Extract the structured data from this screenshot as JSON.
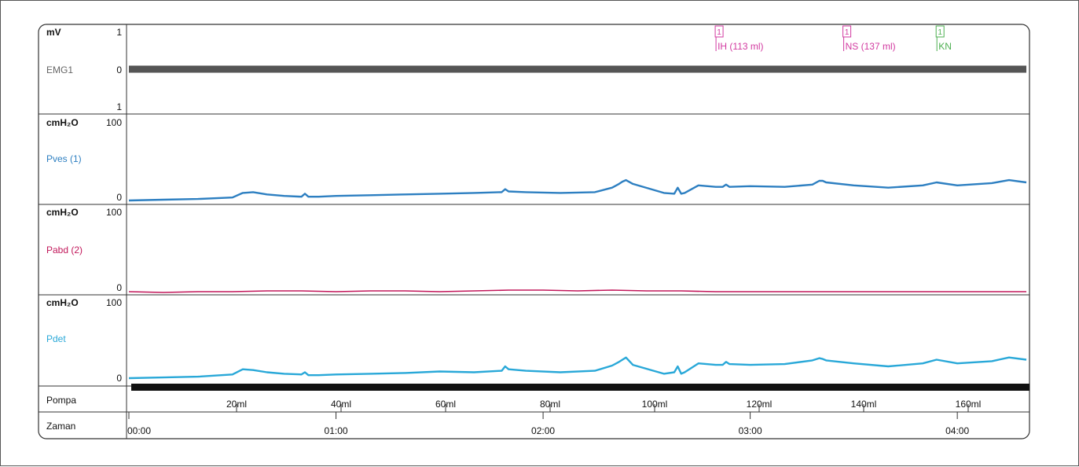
{
  "chart_data": {
    "type": "line",
    "title": "",
    "x_unit": "Zaman",
    "x_ticks": [
      "00:00",
      "01:00",
      "02:00",
      "03:00",
      "04:00"
    ],
    "x_range_minutes": [
      0,
      260
    ],
    "pump_label": "Pompa",
    "pump_ticks": [
      "20ml",
      "40ml",
      "60ml",
      "80ml",
      "100ml",
      "120ml",
      "140ml",
      "160ml"
    ],
    "time_label": "Zaman",
    "events": [
      {
        "marker": "1",
        "label": "IH (113 ml)",
        "t": 171,
        "color": "#d23aa0"
      },
      {
        "marker": "1",
        "label": "NS (137 ml)",
        "t": 208,
        "color": "#d23aa0"
      },
      {
        "marker": "1",
        "label": "KN",
        "t": 235,
        "color": "#4caf50"
      }
    ],
    "channels": [
      {
        "unit": "mV",
        "name": "EMG1",
        "color": "#555555",
        "ticks": [
          "1",
          "0",
          "1"
        ],
        "ylim": [
          -1,
          1
        ],
        "x": [
          0,
          260
        ],
        "values": [
          0,
          0
        ]
      },
      {
        "unit": "cmH₂O",
        "name": "Pves (1)",
        "color": "#2d7fc1",
        "ticks": [
          "100",
          "0"
        ],
        "ylim": [
          0,
          100
        ],
        "x": [
          0,
          10,
          20,
          30,
          33,
          36,
          40,
          45,
          50,
          51,
          52,
          55,
          60,
          70,
          80,
          90,
          100,
          108,
          109,
          110,
          115,
          125,
          135,
          140,
          142,
          143,
          144,
          146,
          155,
          158,
          159,
          160,
          161,
          165,
          170,
          172,
          173,
          174,
          180,
          190,
          198,
          200,
          201,
          202,
          210,
          220,
          230,
          234,
          240,
          250,
          255,
          260
        ],
        "values": [
          0,
          1,
          2,
          4,
          10,
          11,
          8,
          6,
          5,
          9,
          5,
          5,
          6,
          7,
          8,
          9,
          10,
          11,
          15,
          12,
          11,
          10,
          11,
          17,
          22,
          25,
          27,
          22,
          10,
          9,
          17,
          9,
          10,
          20,
          18,
          18,
          21,
          18,
          19,
          18,
          21,
          26,
          26,
          24,
          20,
          17,
          20,
          24,
          20,
          23,
          27,
          24
        ]
      },
      {
        "unit": "cmH₂O",
        "name": "Pabd (2)",
        "color": "#c2185b",
        "ticks": [
          "100",
          "0"
        ],
        "ylim": [
          0,
          100
        ],
        "x": [
          0,
          10,
          20,
          30,
          40,
          50,
          60,
          70,
          80,
          90,
          100,
          110,
          120,
          130,
          140,
          150,
          160,
          170,
          180,
          190,
          200,
          210,
          220,
          230,
          240,
          250,
          260
        ],
        "values": [
          0,
          -1,
          0,
          0,
          1,
          1,
          0,
          1,
          1,
          0,
          1,
          2,
          2,
          1,
          2,
          1,
          1,
          0,
          0,
          0,
          0,
          0,
          0,
          0,
          0,
          0,
          0
        ]
      },
      {
        "unit": "cmH₂O",
        "name": "Pdet",
        "color": "#29a8d8",
        "ticks": [
          "100",
          "0"
        ],
        "ylim": [
          0,
          100
        ],
        "x": [
          0,
          10,
          20,
          30,
          33,
          36,
          40,
          45,
          50,
          51,
          52,
          55,
          60,
          70,
          80,
          90,
          100,
          108,
          109,
          110,
          115,
          125,
          135,
          140,
          142,
          143,
          144,
          146,
          155,
          158,
          159,
          160,
          161,
          165,
          170,
          172,
          173,
          174,
          180,
          190,
          198,
          200,
          201,
          202,
          210,
          220,
          230,
          234,
          240,
          250,
          255,
          260
        ],
        "values": [
          0,
          1,
          2,
          5,
          12,
          11,
          8,
          6,
          5,
          8,
          4,
          4,
          5,
          6,
          7,
          9,
          8,
          10,
          16,
          12,
          10,
          8,
          10,
          17,
          22,
          25,
          28,
          18,
          6,
          8,
          16,
          6,
          8,
          20,
          18,
          18,
          22,
          19,
          18,
          19,
          24,
          27,
          26,
          24,
          20,
          16,
          20,
          25,
          20,
          23,
          28,
          25
        ]
      }
    ]
  }
}
